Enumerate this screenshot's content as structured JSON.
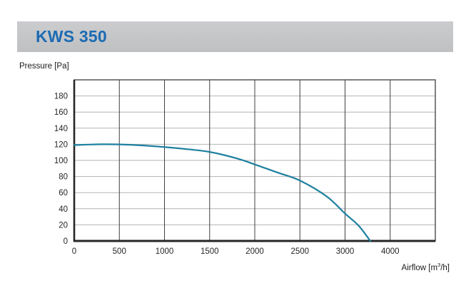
{
  "header": {
    "title": "KWS 350"
  },
  "colors": {
    "accent_blue": "#1b6bb3",
    "header_gray_top": "#cbccce",
    "header_gray_bottom": "#bfc0c2",
    "curve_teal": "#1e80a0",
    "h_gridline": "#b3b3b3",
    "v_gridline": "#3f3f3f",
    "frame": "#4a4a4a",
    "axis": "#262626",
    "tick_text": "#262626",
    "label_text": "#1a1a1a"
  },
  "chart_data": {
    "type": "line",
    "title": "KWS 350",
    "ylabel": "Pressure [Pa]",
    "xlabel_parts": {
      "prefix": "Airflow [m",
      "sup": "3",
      "suffix": "/h]"
    },
    "x_axis": {
      "min": 0,
      "max": 4000,
      "gridline_step": 500,
      "tick_labels": [
        "0",
        "500",
        "1000",
        "1500",
        "2000",
        "2500",
        "3000",
        "4000"
      ],
      "note": "8 labels sit under the first 8 gridlines; the last label reads 4000 but sits at the 3500 gridline (as printed in the original); right frame edge is the 4000 line"
    },
    "y_axis": {
      "min": 0,
      "max": 200,
      "gridline_step": 20,
      "tick_labels": [
        "0",
        "20",
        "40",
        "60",
        "80",
        "100",
        "120",
        "140",
        "160",
        "180"
      ]
    },
    "grid": "on",
    "legend": "none",
    "series": [
      {
        "name": "pressure-vs-airflow",
        "color": "#1e80a0",
        "points": [
          [
            0,
            119
          ],
          [
            300,
            120
          ],
          [
            600,
            119.5
          ],
          [
            900,
            117.5
          ],
          [
            1200,
            114.5
          ],
          [
            1500,
            110.5
          ],
          [
            1800,
            102.5
          ],
          [
            2000,
            95
          ],
          [
            2250,
            85
          ],
          [
            2500,
            75
          ],
          [
            2800,
            55
          ],
          [
            3000,
            34
          ],
          [
            3150,
            19
          ],
          [
            3280,
            0
          ]
        ]
      }
    ]
  }
}
